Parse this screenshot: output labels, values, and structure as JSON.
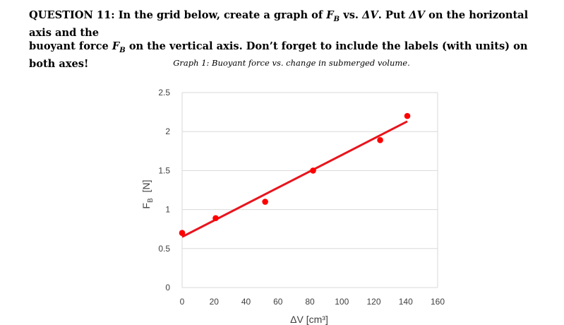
{
  "question": {
    "number": "QUESTION 11:",
    "line1_a": "In the grid below, create a graph of",
    "fb_symbol": "F",
    "fb_sub": "B",
    "vs": "vs.",
    "dv_symbol": "ΔV",
    "line1_b": ". Put",
    "line1_c": "on the horizontal axis and the",
    "line2_a": "buoyant force",
    "line2_b": "on the vertical axis. Don’t forget to include the labels (with units) on both axes!"
  },
  "chart_data": {
    "type": "scatter",
    "title": "Graph 1: Buoyant force vs. change in submerged volume.",
    "xlabel": "ΔV  [cm³]",
    "ylabel_main": "F",
    "ylabel_sub": "B",
    "ylabel_unit": "[N]",
    "xlim": [
      0,
      160
    ],
    "ylim": [
      0,
      2.5
    ],
    "x_ticks": [
      "0",
      "20",
      "40",
      "60",
      "80",
      "100",
      "120",
      "140",
      "160"
    ],
    "y_ticks": [
      "0",
      "0.5",
      "1",
      "1.5",
      "2",
      "2.5"
    ],
    "grid": true,
    "points": [
      {
        "x": 0,
        "y": 0.7
      },
      {
        "x": 21,
        "y": 0.89
      },
      {
        "x": 52,
        "y": 1.1
      },
      {
        "x": 82,
        "y": 1.5
      },
      {
        "x": 124,
        "y": 1.89
      },
      {
        "x": 141,
        "y": 2.2
      }
    ],
    "fit_line": {
      "x": [
        0,
        141
      ],
      "y": [
        0.65,
        2.13
      ]
    },
    "colors": {
      "points": "#ff0000",
      "line": "#e8141c",
      "grid": "#d9d9d9"
    }
  }
}
